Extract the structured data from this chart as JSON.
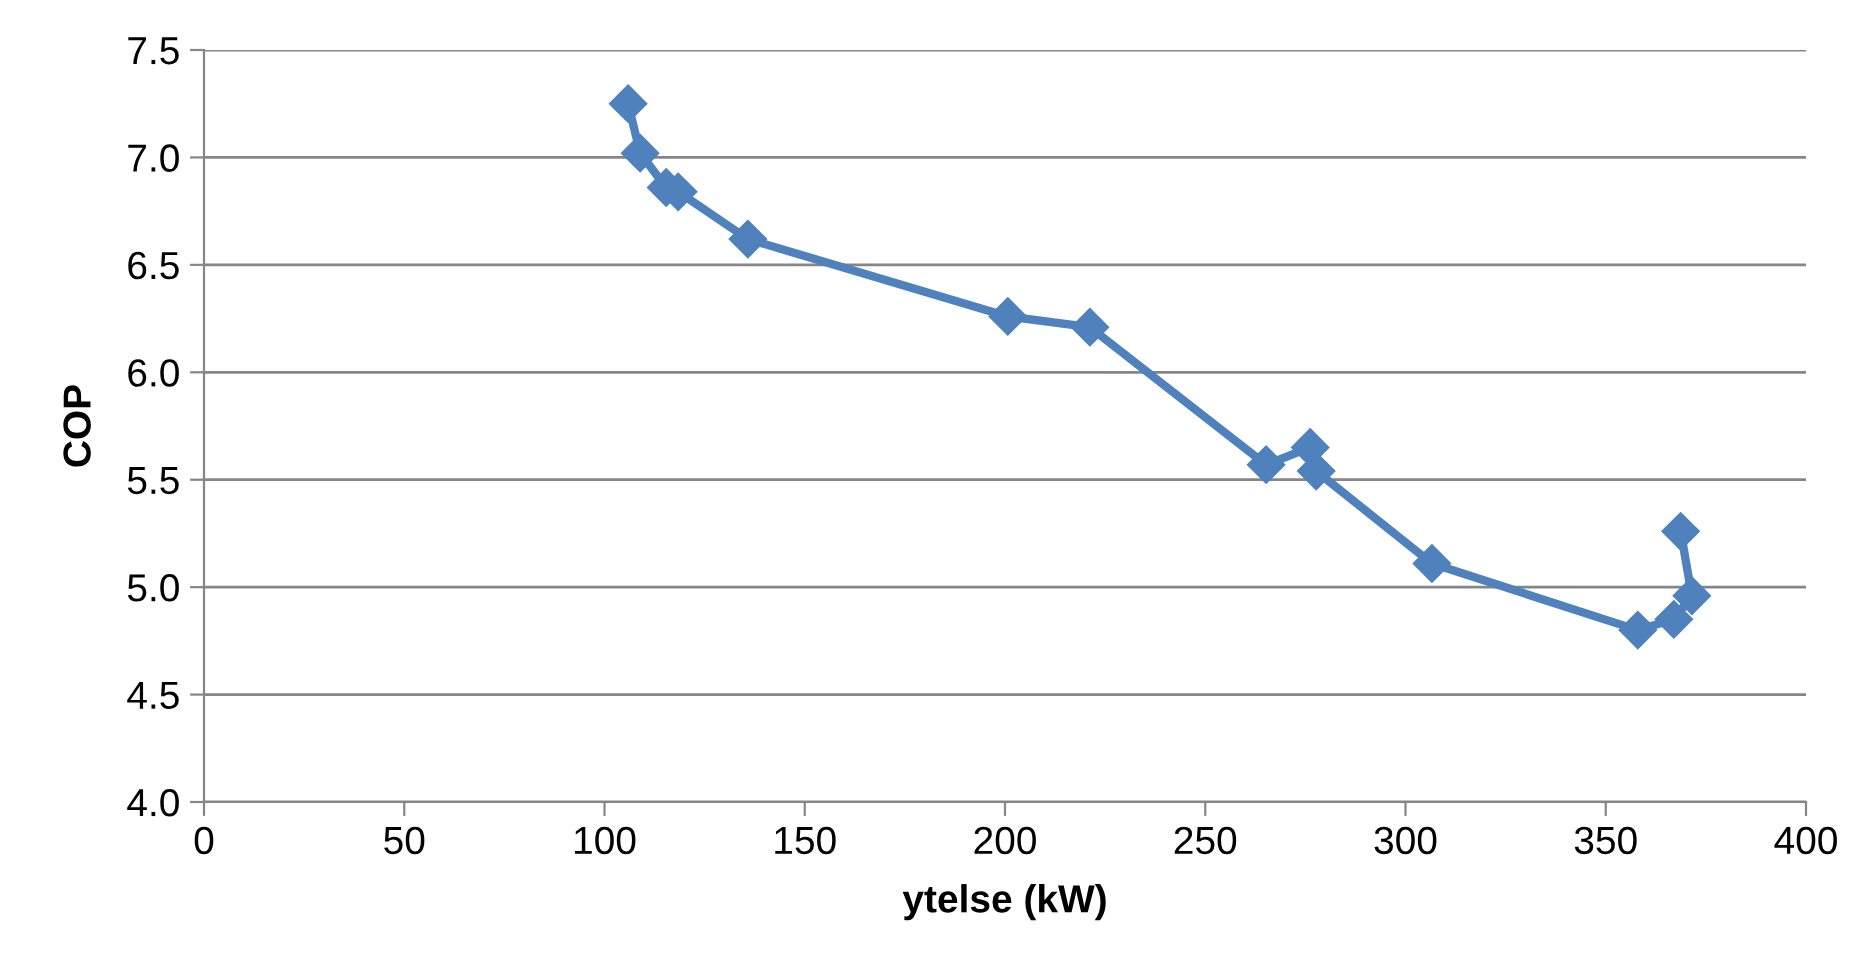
{
  "chart_data": {
    "type": "line",
    "xlabel": "ytelse (kW)",
    "ylabel": "COP",
    "series": [
      {
        "color": "#4f81bd",
        "x": [
          105.9,
          108.9,
          115.4,
          118.4,
          135.8,
          200.7,
          221.2,
          265.2,
          276.2,
          277.7,
          306.6,
          358.0,
          367.0,
          371.5,
          368.7
        ],
        "values": [
          7.25,
          7.02,
          6.86,
          6.84,
          6.62,
          6.26,
          6.21,
          5.57,
          5.65,
          5.54,
          5.11,
          4.8,
          4.85,
          4.96,
          5.26
        ]
      }
    ],
    "xlim": [
      0,
      400
    ],
    "xticks": [
      0,
      50,
      100,
      150,
      200,
      250,
      300,
      350,
      400
    ],
    "ylim": [
      4.0,
      7.5
    ],
    "yticks": [
      {
        "value": 4.0,
        "label": "4.0"
      },
      {
        "value": 4.5,
        "label": "4.5"
      },
      {
        "value": 5.0,
        "label": "5.0"
      },
      {
        "value": 5.5,
        "label": "5.5"
      },
      {
        "value": 6.0,
        "label": "6.0"
      },
      {
        "value": 6.5,
        "label": "6.5"
      },
      {
        "value": 7.0,
        "label": "7.0"
      },
      {
        "value": 7.5,
        "label": "7.5"
      }
    ],
    "grid": "y",
    "marker": "diamond",
    "line_style": "solid"
  }
}
